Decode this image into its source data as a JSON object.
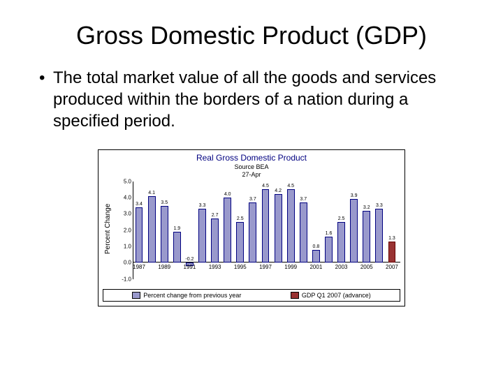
{
  "slide": {
    "title": "Gross Domestic Product (GDP)",
    "bullet": "The total market value of all the goods and services produced within the borders of a nation during a specified period."
  },
  "chart": {
    "type": "bar",
    "title": "Real Gross Domestic Product",
    "source": "Source BEA",
    "date": "27-Apr",
    "ylabel": "Percent Change",
    "ylim_min": -1.0,
    "ylim_max": 5.0,
    "ytick_step": 1.0,
    "yticks": [
      "-1.0",
      "0.0",
      "1.0",
      "2.0",
      "3.0",
      "4.0",
      "5.0"
    ],
    "xticks": [
      "1987",
      "1989",
      "1991",
      "1993",
      "1995",
      "1997",
      "1999",
      "2001",
      "2003",
      "2005",
      "2007"
    ],
    "series_main": {
      "label": "Percent change from previous year",
      "color": "#9999cc",
      "border": "#000080",
      "values": [
        3.4,
        4.1,
        3.5,
        1.9,
        -0.2,
        3.3,
        2.7,
        4.0,
        2.5,
        3.7,
        4.5,
        4.2,
        4.5,
        3.7,
        0.8,
        1.6,
        2.5,
        3.9,
        3.2,
        3.3
      ]
    },
    "series_advance": {
      "label": "GDP Q1 2007 (advance)",
      "color": "#993333",
      "border": "#660000",
      "year_index": 20,
      "value": 1.3
    },
    "label_fontsize": 7,
    "axis_color": "#000000",
    "background_color": "#ffffff"
  }
}
